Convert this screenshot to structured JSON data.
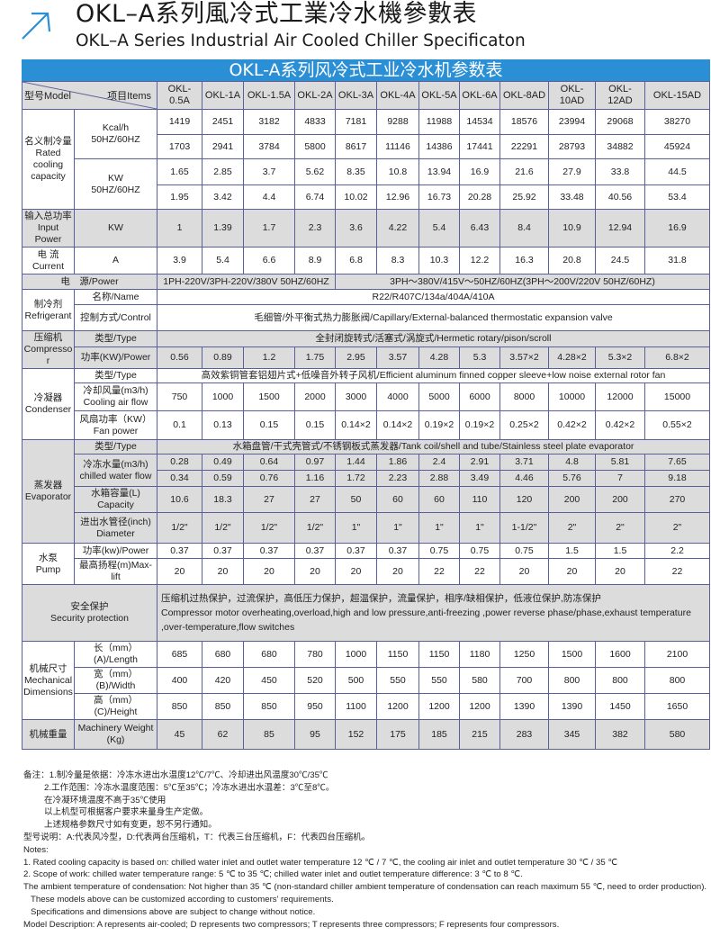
{
  "title": {
    "zh": "OKL–A系列風冷式工業冷水機參數表",
    "en": "OKL–A Series Industrial Air Cooled Chiller Specificaton",
    "accent_color": "#2b8fd6"
  },
  "table": {
    "banner": "OKL-A系列风冷式工业冷水机参数表",
    "header": {
      "model_label": "型号Model",
      "items_label": "项目Items"
    },
    "models": [
      "OKL-0.5A",
      "OKL-1A",
      "OKL-1.5A",
      "OKL-2A",
      "OKL-3A",
      "OKL-4A",
      "OKL-5A",
      "OKL-6A",
      "OKL-8AD",
      "OKL-10AD",
      "OKL-12AD",
      "OKL-15AD"
    ],
    "cooling": {
      "label_zh": "名义制冷量",
      "label_en": "Rated cooling capacity",
      "kcal_unit": "Kcal/h",
      "kcal_freq": "50HZ/60HZ",
      "kcal_50": [
        "1419",
        "2451",
        "3182",
        "4833",
        "7181",
        "9288",
        "11988",
        "14534",
        "18576",
        "23994",
        "29068",
        "38270"
      ],
      "kcal_60": [
        "1703",
        "2941",
        "3784",
        "5800",
        "8617",
        "11146",
        "14386",
        "17441",
        "22291",
        "28793",
        "34882",
        "45924"
      ],
      "kw_unit": "KW",
      "kw_freq": "50HZ/60HZ",
      "kw_50": [
        "1.65",
        "2.85",
        "3.7",
        "5.62",
        "8.35",
        "10.8",
        "13.94",
        "16.9",
        "21.6",
        "27.9",
        "33.8",
        "44.5"
      ],
      "kw_60": [
        "1.95",
        "3.42",
        "4.4",
        "6.74",
        "10.02",
        "12.96",
        "16.73",
        "20.28",
        "25.92",
        "33.48",
        "40.56",
        "53.4"
      ]
    },
    "input_power": {
      "label_zh": "输入总功率",
      "label_en": "Input Power",
      "unit": "KW",
      "values": [
        "1",
        "1.39",
        "1.7",
        "2.3",
        "3.6",
        "4.22",
        "5.4",
        "6.43",
        "8.4",
        "10.9",
        "12.94",
        "16.9"
      ]
    },
    "current": {
      "label_zh": "电 流",
      "label_en": "Current",
      "unit": "A",
      "values": [
        "3.9",
        "5.4",
        "6.6",
        "8.9",
        "6.8",
        "8.3",
        "10.3",
        "12.2",
        "16.3",
        "20.8",
        "24.5",
        "31.8"
      ]
    },
    "power_supply": {
      "label": "电　源/Power",
      "group1": "1PH-220V/3PH-220V/380V 50HZ/60HZ",
      "group2": "3PH～380V/415V～50HZ/60HZ(3PH～200V/220V  50HZ/60HZ)"
    },
    "refrigerant": {
      "label_zh": "制冷剂",
      "label_en": "Refrigerant",
      "name_label": "名称/Name",
      "name_value": "R22/R407C/134a/404A/410A",
      "control_label": "控制方式/Control",
      "control_value": "毛细管/外平衡式热力膨胀阀/Capillary/External-balanced thermostatic expansion valve"
    },
    "compressor": {
      "label_zh": "压缩机",
      "label_en": "Compressor",
      "type_label": "类型/Type",
      "type_value": "全封闭旋转式/活塞式/涡旋式/Hermetic rotary/pison/scroll",
      "power_label": "功率(KW)/Power",
      "values": [
        "0.56",
        "0.89",
        "1.2",
        "1.75",
        "2.95",
        "3.57",
        "4.28",
        "5.3",
        "3.57×2",
        "4.28×2",
        "5.3×2",
        "6.8×2"
      ]
    },
    "condenser": {
      "label_zh": "冷凝器",
      "label_en": "Condenser",
      "type_label": "类型/Type",
      "type_value": "高效紫铜管套铝翅片式+低噪音外转子风机/Efficient aluminum finned copper sleeve+low noise external rotor fan",
      "airflow_label_zh": "冷却风量(m3/h)",
      "airflow_label_en": "Cooling air flow",
      "airflow": [
        "750",
        "1000",
        "1500",
        "2000",
        "3000",
        "4000",
        "5000",
        "6000",
        "8000",
        "10000",
        "12000",
        "15000"
      ],
      "fan_label_zh": "风扇功率（KW）",
      "fan_label_en": "Fan power",
      "fan": [
        "0.1",
        "0.13",
        "0.15",
        "0.15",
        "0.14×2",
        "0.14×2",
        "0.19×2",
        "0.19×2",
        "0.25×2",
        "0.42×2",
        "0.42×2",
        "0.55×2"
      ]
    },
    "evaporator": {
      "label_zh": "蒸发器",
      "label_en": "Evaporator",
      "type_label": "类型/Type",
      "type_value": "水箱盘管/干式壳管式/不锈钢板式蒸发器/Tank coil/shell and tube/Stainless steel plate evaporator",
      "flow_label_zh": "冷冻水量(m3/h)",
      "flow_label_en": "chilled water flow",
      "flow_50": [
        "0.28",
        "0.49",
        "0.64",
        "0.97",
        "1.44",
        "1.86",
        "2.4",
        "2.91",
        "3.71",
        "4.8",
        "5.81",
        "7.65"
      ],
      "flow_60": [
        "0.34",
        "0.59",
        "0.76",
        "1.16",
        "1.72",
        "2.23",
        "2.88",
        "3.49",
        "4.46",
        "5.76",
        "7",
        "9.18"
      ],
      "capacity_label_zh": "水箱容量(L)",
      "capacity_label_en": "Capacity",
      "capacity": [
        "10.6",
        "18.3",
        "27",
        "27",
        "50",
        "60",
        "60",
        "110",
        "120",
        "200",
        "200",
        "270"
      ],
      "diameter_label_zh": "进出水管径(inch)",
      "diameter_label_en": "Diameter",
      "diameter": [
        "1/2\"",
        "1/2\"",
        "1/2\"",
        "1/2\"",
        "1\"",
        "1\"",
        "1\"",
        "1\"",
        "1-1/2\"",
        "2\"",
        "2\"",
        "2\""
      ]
    },
    "pump": {
      "label_zh": "水泵",
      "label_en": "Pump",
      "power_label": "功率(kw)/Power",
      "power": [
        "0.37",
        "0.37",
        "0.37",
        "0.37",
        "0.37",
        "0.37",
        "0.75",
        "0.75",
        "0.75",
        "1.5",
        "1.5",
        "2.2"
      ],
      "lift_label": "最高扬程(m)Max-lift",
      "lift": [
        "20",
        "20",
        "20",
        "20",
        "20",
        "20",
        "22",
        "22",
        "20",
        "20",
        "20",
        "22"
      ]
    },
    "safety": {
      "label_zh": "安全保护",
      "label_en": "Security protection",
      "text_zh": "压缩机过热保护，过流保护，高低压力保护，超温保护，流量保护，相序/缺相保护，低液位保护,防冻保护",
      "text_en": "Compressor motor overheating,overload,high and low pressure,anti-freezing ,power reverse phase/phase,exhaust temperature ,over-temperature,flow switches"
    },
    "dimensions": {
      "label_zh": "机械尺寸",
      "label_en1": "Mechanical",
      "label_en2": "Dimensions",
      "length_label": "长（mm）(A)/Length",
      "length": [
        "685",
        "680",
        "680",
        "780",
        "1000",
        "1150",
        "1150",
        "1180",
        "1250",
        "1500",
        "1600",
        "2100"
      ],
      "width_label": "宽（mm）(B)/Width",
      "width": [
        "400",
        "420",
        "450",
        "520",
        "500",
        "550",
        "550",
        "580",
        "700",
        "800",
        "800",
        "800"
      ],
      "height_label": "高（mm）(C)/Height",
      "height": [
        "850",
        "850",
        "850",
        "950",
        "1100",
        "1200",
        "1200",
        "1200",
        "1390",
        "1390",
        "1450",
        "1650"
      ]
    },
    "weight": {
      "label_zh": "机械重量",
      "label_en": "Machinery Weight",
      "unit": "(Kg)",
      "values": [
        "45",
        "62",
        "85",
        "95",
        "152",
        "175",
        "185",
        "215",
        "283",
        "345",
        "382",
        "580"
      ]
    }
  },
  "notes": {
    "zh": [
      "备注：1.制冷量是依据：冷冻水进出水温度12℃/7℃、冷却进出风温度30℃/35℃",
      "2.工作范围：冷冻水温度范围：5℃至35℃；冷冻水进出水温差：3℃至8℃。",
      "在冷凝环境温度不高于35℃使用",
      "以上机型可根据客户要求来量身生产定做。",
      "上述规格参数尺寸如有变更，恕不另行通知。",
      "型号说明：A:代表风冷型，D:代表两台压缩机，T：代表三台压缩机，F：代表四台压缩机。"
    ],
    "en": [
      "Notes:",
      "1. Rated cooling capacity is based on: chilled water inlet and outlet water temperature 12 ℃ / 7 ℃, the cooling air inlet and outlet temperature 30 ℃ / 35 ℃",
      "2. Scope of work: chilled water temperature range: 5 ℃ to 35 ℃; chilled water inlet and outlet temperature difference: 3 ℃ to 8 ℃.",
      "The ambient temperature of condensation: Not higher than 35 ℃ (non-standard chiller ambient temperature of condensation can reach maximum 55 ℃, need to order production).",
      "These models above can be customized according to customers’ requirements.",
      "Specifications and dimensions above are subject to change without notice.",
      "Model Description: A represents air-cooled; D represents two compressors; T represents three compressors; F represents four compressors."
    ]
  }
}
